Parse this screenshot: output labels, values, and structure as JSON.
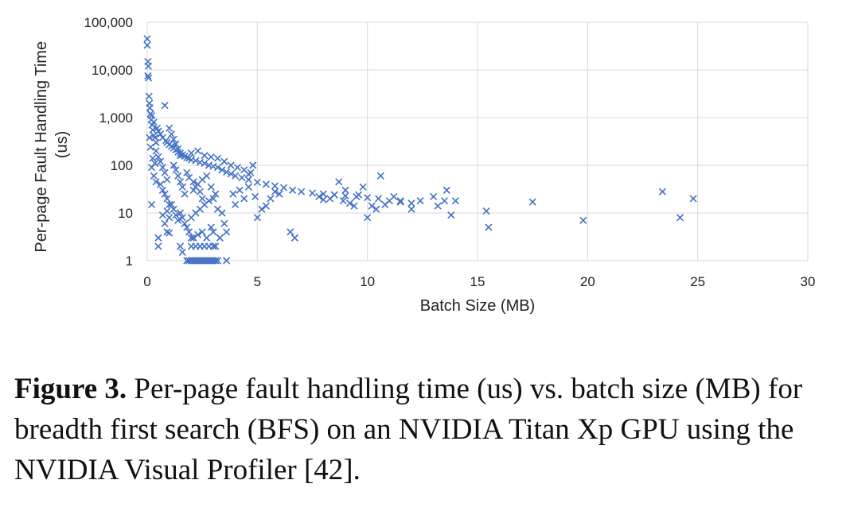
{
  "chart_data": {
    "type": "scatter",
    "title": "",
    "xlabel": "Batch Size (MB)",
    "ylabel": "Per-page Fault Handling Time (us)",
    "x_ticks": [
      "0",
      "5",
      "10",
      "15",
      "20",
      "25",
      "30"
    ],
    "y_ticks": [
      "1",
      "10",
      "100",
      "1,000",
      "10,000",
      "100,000"
    ],
    "xlim": [
      0,
      30
    ],
    "ylim": [
      1,
      100000
    ],
    "y_scale": "log",
    "grid": true,
    "legend": "none",
    "marker": "x",
    "color": "#4472c4",
    "series": [
      {
        "points": [
          [
            0.0,
            45000
          ],
          [
            0.0,
            33000
          ],
          [
            0.03,
            15000
          ],
          [
            0.05,
            12000
          ],
          [
            0.03,
            7500
          ],
          [
            0.06,
            6800
          ],
          [
            0.08,
            2800
          ],
          [
            0.1,
            2000
          ],
          [
            0.12,
            1600
          ],
          [
            0.15,
            1200
          ],
          [
            0.18,
            900
          ],
          [
            0.22,
            700
          ],
          [
            0.25,
            550
          ],
          [
            0.3,
            420
          ],
          [
            0.35,
            380
          ],
          [
            0.4,
            300
          ],
          [
            0.1,
            380
          ],
          [
            0.2,
            1100
          ],
          [
            0.3,
            800
          ],
          [
            0.45,
            600
          ],
          [
            0.5,
            520
          ],
          [
            0.6,
            450
          ],
          [
            0.7,
            380
          ],
          [
            0.8,
            1800
          ],
          [
            0.85,
            330
          ],
          [
            0.9,
            300
          ],
          [
            1.0,
            270
          ],
          [
            1.1,
            250
          ],
          [
            1.2,
            230
          ],
          [
            1.3,
            210
          ],
          [
            1.4,
            190
          ],
          [
            1.5,
            180
          ],
          [
            1.6,
            165
          ],
          [
            1.7,
            155
          ],
          [
            1.8,
            145
          ],
          [
            1.9,
            140
          ],
          [
            2.0,
            130
          ],
          [
            2.2,
            125
          ],
          [
            2.4,
            115
          ],
          [
            2.6,
            110
          ],
          [
            2.8,
            100
          ],
          [
            3.0,
            95
          ],
          [
            3.2,
            90
          ],
          [
            3.4,
            80
          ],
          [
            3.6,
            72
          ],
          [
            3.8,
            66
          ],
          [
            4.0,
            60
          ],
          [
            4.3,
            55
          ],
          [
            4.6,
            50
          ],
          [
            5.0,
            44
          ],
          [
            5.4,
            40
          ],
          [
            5.8,
            37
          ],
          [
            6.2,
            34
          ],
          [
            6.6,
            30
          ],
          [
            7.0,
            28
          ],
          [
            7.5,
            26
          ],
          [
            8.0,
            25
          ],
          [
            8.5,
            24
          ],
          [
            9.0,
            23
          ],
          [
            9.5,
            22
          ],
          [
            10.0,
            21
          ],
          [
            10.5,
            20
          ],
          [
            11.0,
            18
          ],
          [
            11.5,
            17
          ],
          [
            12.0,
            16
          ],
          [
            0.4,
            200
          ],
          [
            0.5,
            150
          ],
          [
            0.6,
            120
          ],
          [
            0.7,
            90
          ],
          [
            0.8,
            70
          ],
          [
            0.9,
            50
          ],
          [
            1.0,
            600
          ],
          [
            1.1,
            450
          ],
          [
            1.2,
            350
          ],
          [
            1.3,
            280
          ],
          [
            1.4,
            220
          ],
          [
            1.5,
            160
          ],
          [
            0.6,
            40
          ],
          [
            0.7,
            30
          ],
          [
            0.8,
            25
          ],
          [
            0.9,
            20
          ],
          [
            1.0,
            15
          ],
          [
            0.7,
            9
          ],
          [
            0.8,
            6
          ],
          [
            0.9,
            4
          ],
          [
            1.0,
            3.8
          ],
          [
            0.5,
            3
          ],
          [
            0.5,
            2
          ],
          [
            0.2,
            15
          ],
          [
            1.2,
            100
          ],
          [
            1.3,
            80
          ],
          [
            1.4,
            60
          ],
          [
            1.5,
            45
          ],
          [
            1.6,
            35
          ],
          [
            1.7,
            25
          ],
          [
            1.5,
            10
          ],
          [
            1.6,
            8
          ],
          [
            1.7,
            6
          ],
          [
            1.8,
            5
          ],
          [
            1.9,
            4
          ],
          [
            2.0,
            3
          ],
          [
            1.5,
            2
          ],
          [
            1.6,
            1.5
          ],
          [
            1.8,
            1
          ],
          [
            1.9,
            1
          ],
          [
            2.0,
            1
          ],
          [
            2.1,
            1
          ],
          [
            2.2,
            1
          ],
          [
            2.3,
            1
          ],
          [
            2.4,
            1
          ],
          [
            2.5,
            1
          ],
          [
            2.6,
            1
          ],
          [
            2.7,
            1
          ],
          [
            2.8,
            1
          ],
          [
            2.9,
            1
          ],
          [
            3.0,
            1
          ],
          [
            3.1,
            1
          ],
          [
            3.2,
            1
          ],
          [
            3.6,
            1
          ],
          [
            2.0,
            2
          ],
          [
            2.2,
            2
          ],
          [
            2.4,
            2
          ],
          [
            2.6,
            2
          ],
          [
            2.8,
            2
          ],
          [
            3.0,
            2
          ],
          [
            3.1,
            2
          ],
          [
            2.1,
            3
          ],
          [
            2.3,
            3.5
          ],
          [
            2.5,
            4
          ],
          [
            2.7,
            3
          ],
          [
            2.9,
            5
          ],
          [
            3.0,
            4
          ],
          [
            3.3,
            3
          ],
          [
            2.0,
            8
          ],
          [
            2.2,
            10
          ],
          [
            2.4,
            12
          ],
          [
            2.6,
            15
          ],
          [
            2.8,
            18
          ],
          [
            3.0,
            20
          ],
          [
            3.2,
            12
          ],
          [
            2.1,
            30
          ],
          [
            2.3,
            40
          ],
          [
            2.5,
            50
          ],
          [
            2.7,
            60
          ],
          [
            2.9,
            35
          ],
          [
            3.1,
            25
          ],
          [
            3.4,
            10
          ],
          [
            2.0,
            180
          ],
          [
            2.3,
            200
          ],
          [
            2.6,
            160
          ],
          [
            2.9,
            150
          ],
          [
            3.2,
            140
          ],
          [
            3.5,
            120
          ],
          [
            3.8,
            100
          ],
          [
            4.1,
            90
          ],
          [
            4.4,
            80
          ],
          [
            4.7,
            70
          ],
          [
            3.5,
            6
          ],
          [
            3.6,
            4
          ],
          [
            3.9,
            25
          ],
          [
            4.0,
            15
          ],
          [
            4.2,
            30
          ],
          [
            4.4,
            20
          ],
          [
            4.6,
            35
          ],
          [
            4.9,
            22
          ],
          [
            5.0,
            8
          ],
          [
            5.2,
            12
          ],
          [
            5.4,
            14
          ],
          [
            5.6,
            20
          ],
          [
            5.8,
            28
          ],
          [
            6.0,
            25
          ],
          [
            6.5,
            4
          ],
          [
            6.7,
            3
          ],
          [
            4.8,
            100
          ],
          [
            4.6,
            65
          ],
          [
            7.8,
            22
          ],
          [
            8.0,
            19
          ],
          [
            8.3,
            20
          ],
          [
            8.5,
            24
          ],
          [
            8.7,
            45
          ],
          [
            8.9,
            18
          ],
          [
            9.0,
            30
          ],
          [
            9.2,
            16
          ],
          [
            9.4,
            14
          ],
          [
            9.6,
            24
          ],
          [
            9.8,
            35
          ],
          [
            10.0,
            8
          ],
          [
            10.2,
            14
          ],
          [
            10.4,
            12
          ],
          [
            10.6,
            60
          ],
          [
            10.8,
            15
          ],
          [
            11.2,
            22
          ],
          [
            11.5,
            18
          ],
          [
            12.0,
            12
          ],
          [
            12.4,
            18
          ],
          [
            13.0,
            22
          ],
          [
            13.2,
            14
          ],
          [
            13.5,
            18
          ],
          [
            13.6,
            30
          ],
          [
            13.8,
            9
          ],
          [
            14.0,
            18
          ],
          [
            15.4,
            11
          ],
          [
            15.5,
            5
          ],
          [
            17.5,
            17
          ],
          [
            19.8,
            7
          ],
          [
            23.4,
            28
          ],
          [
            24.2,
            8
          ],
          [
            24.8,
            20
          ],
          [
            0.2,
            90
          ],
          [
            0.3,
            60
          ],
          [
            0.4,
            45
          ],
          [
            0.15,
            240
          ],
          [
            0.25,
            140
          ],
          [
            0.35,
            110
          ],
          [
            1.8,
            70
          ],
          [
            1.9,
            55
          ],
          [
            2.1,
            45
          ],
          [
            2.2,
            35
          ],
          [
            2.4,
            28
          ],
          [
            2.5,
            20
          ],
          [
            1.1,
            15
          ],
          [
            1.2,
            12
          ],
          [
            1.3,
            9
          ],
          [
            1.4,
            7
          ],
          [
            1.0,
            8
          ],
          [
            0.9,
            11
          ]
        ]
      }
    ]
  },
  "caption": {
    "label": "Figure 3.",
    "text": " Per-page fault handling time (us) vs. batch size (MB) for breadth first search (BFS) on an NVIDIA Titan Xp GPU using the NVIDIA Visual Profiler [42]."
  }
}
